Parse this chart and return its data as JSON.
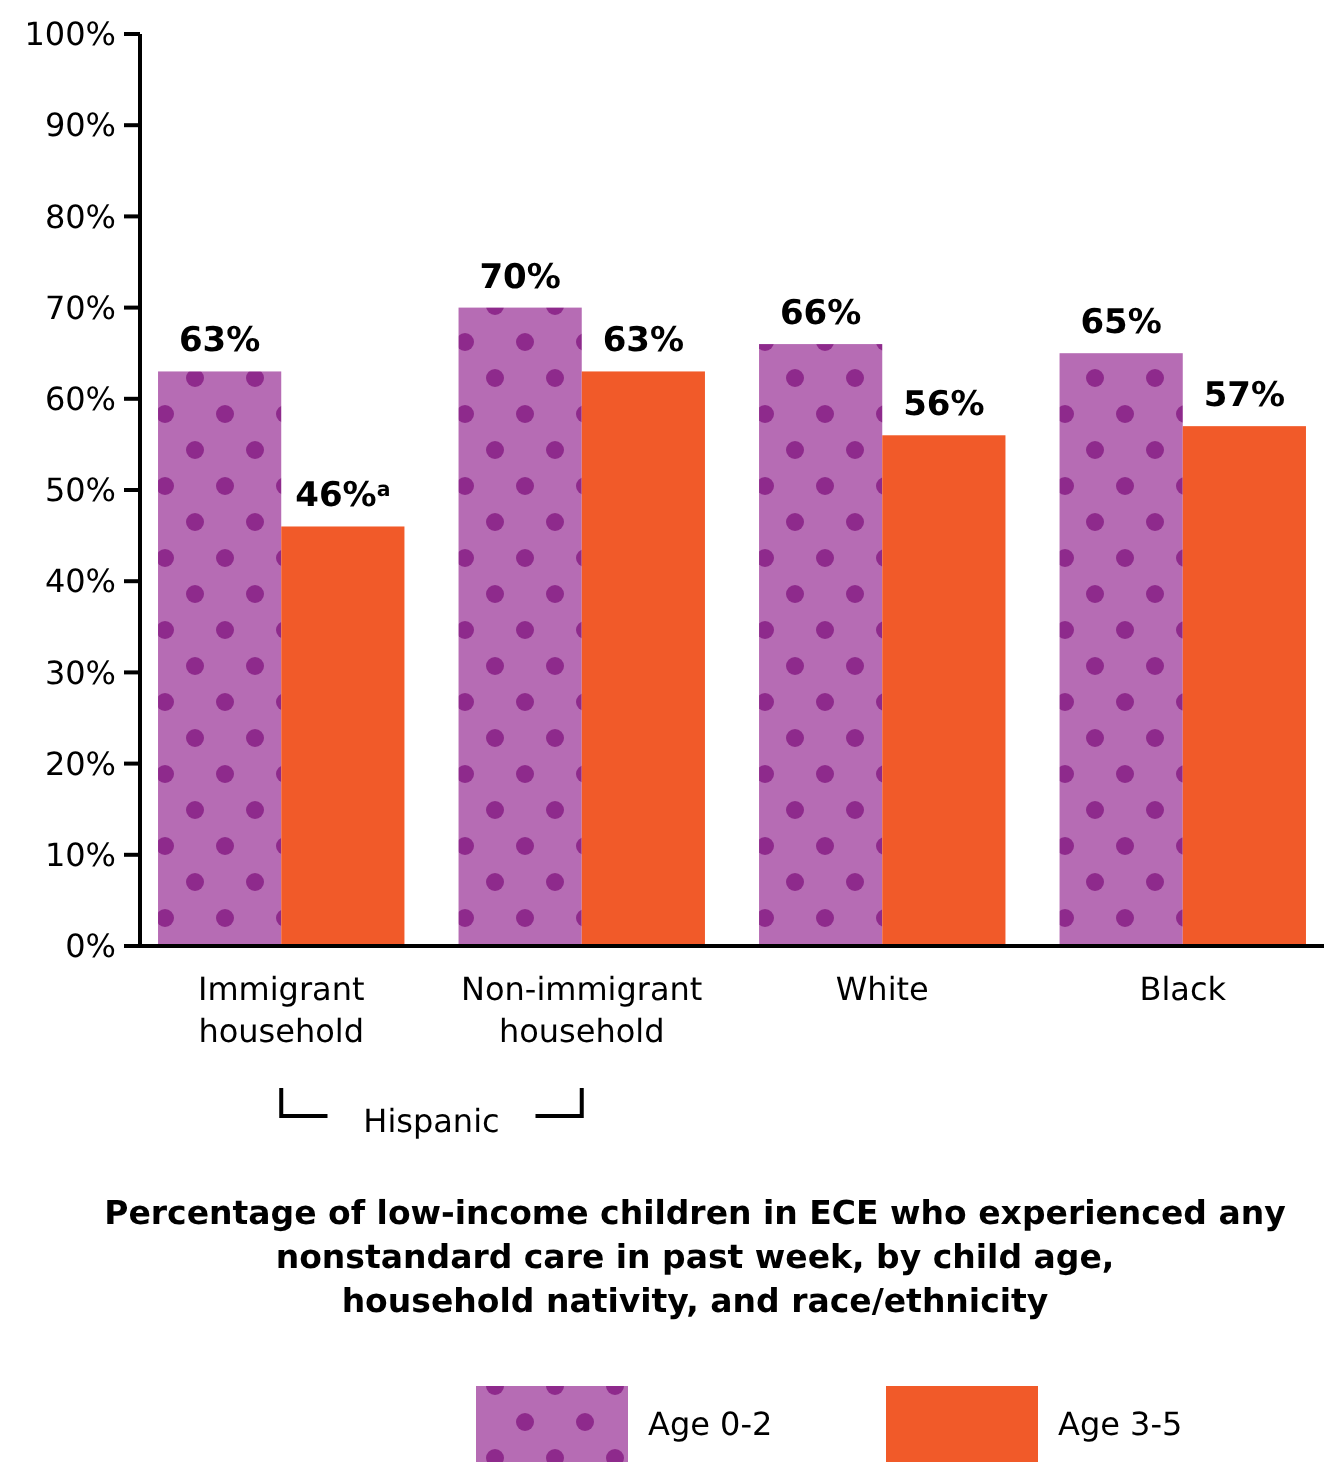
{
  "chart_data": {
    "type": "bar",
    "title": "Percentage of low-income children in ECE who experienced any\nnonstandard care in past week, by child age,\nhousehold nativity, and race/ethnicity",
    "categories": [
      "Immigrant\nhousehold",
      "Non-immigrant\nhousehold",
      "White",
      "Black"
    ],
    "series": [
      {
        "name": "Age 0-2",
        "color": "#b66cb4",
        "values": [
          63,
          70,
          66,
          65
        ],
        "value_labels": [
          "63%",
          "70%",
          "66%",
          "65%"
        ]
      },
      {
        "name": "Age 3-5",
        "color": "#f15a29",
        "values": [
          46,
          63,
          56,
          57
        ],
        "value_labels": [
          "46%$^{a}$",
          "63%",
          "56%",
          "57%"
        ]
      }
    ],
    "ylim": [
      0,
      100
    ],
    "yticks": [
      {
        "value": 0,
        "label": "0%"
      },
      {
        "value": 10,
        "label": "10%"
      },
      {
        "value": 20,
        "label": "20%"
      },
      {
        "value": 30,
        "label": "30%"
      },
      {
        "value": 40,
        "label": "40%"
      },
      {
        "value": 50,
        "label": "50%"
      },
      {
        "value": 60,
        "label": "60%"
      },
      {
        "value": 70,
        "label": "70%"
      },
      {
        "value": 80,
        "label": "80%"
      },
      {
        "value": 90,
        "label": "90%"
      },
      {
        "value": 100,
        "label": "100%"
      }
    ],
    "annotations": [
      "Hispanic"
    ],
    "legend": "bottom",
    "grid": false
  }
}
